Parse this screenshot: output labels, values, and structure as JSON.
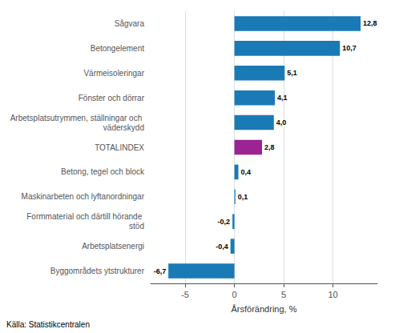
{
  "chart_data": {
    "type": "bar",
    "orientation": "horizontal",
    "categories": [
      "Byggområdets ytstrukturer",
      "Arbetsplatsenergi",
      "Formmaterial och därtill hörande stöd",
      "Maskinarbeten och lyftanordningar",
      "Betong, tegel och block",
      "TOTALINDEX",
      "Arbetsplatsutrymmen, ställningar och väderskydd",
      "Fönster och dörrar",
      "Värmeisoleringar",
      "Betongelement",
      "Sågvara"
    ],
    "values": [
      -6.7,
      -0.4,
      -0.2,
      0.1,
      0.4,
      2.8,
      4.0,
      4.1,
      5.1,
      10.7,
      12.8
    ],
    "value_labels": [
      "-6,7",
      "-0,4",
      "-0,2",
      "0,1",
      "0,4",
      "2,8",
      "4,0",
      "4,1",
      "5,1",
      "10,7",
      "12,8"
    ],
    "colors": [
      "#1a7ab5",
      "#1a7ab5",
      "#1a7ab5",
      "#1a7ab5",
      "#1a7ab5",
      "#9b2393",
      "#1a7ab5",
      "#1a7ab5",
      "#1a7ab5",
      "#1a7ab5",
      "#1a7ab5"
    ],
    "xlabel": "Årsförändring, %",
    "xlim": [
      -8.5,
      14.5
    ],
    "xticks": [
      -5,
      0,
      5,
      10
    ],
    "grid": true,
    "data_labels": true,
    "annotations": [
      "Källa: Statistikcentralen"
    ]
  }
}
